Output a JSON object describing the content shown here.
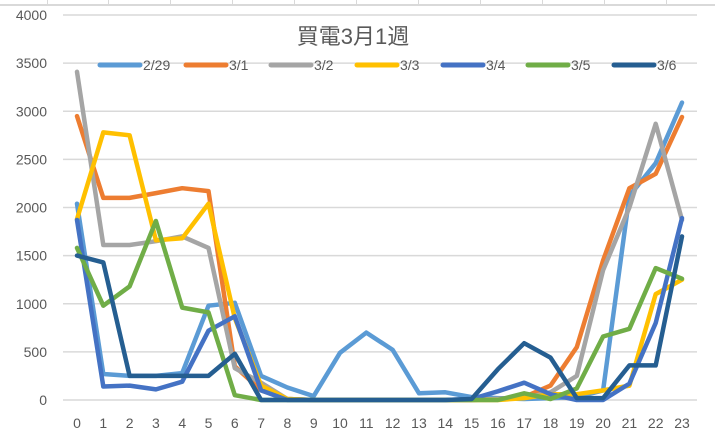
{
  "chart_data": {
    "type": "line",
    "title": "買電3月1週",
    "xlabel": "",
    "ylabel": "",
    "ylim": [
      0,
      4000
    ],
    "yticks": [
      0,
      500,
      1000,
      1500,
      2000,
      2500,
      3000,
      3500,
      4000
    ],
    "grid": true,
    "legend_position": "top",
    "x": [
      0,
      1,
      2,
      3,
      4,
      5,
      6,
      7,
      8,
      9,
      10,
      11,
      12,
      13,
      14,
      15,
      16,
      17,
      18,
      19,
      20,
      21,
      22,
      23
    ],
    "series": [
      {
        "name": "2/29",
        "color": "#5B9BD5",
        "values": [
          2040,
          270,
          250,
          250,
          280,
          980,
          1010,
          250,
          130,
          40,
          490,
          700,
          520,
          70,
          80,
          30,
          20,
          10,
          20,
          30,
          100,
          2120,
          2460,
          3090
        ]
      },
      {
        "name": "3/1",
        "color": "#ED7D31",
        "values": [
          2950,
          2100,
          2100,
          2150,
          2200,
          2170,
          350,
          100,
          10,
          0,
          0,
          0,
          0,
          0,
          0,
          0,
          10,
          30,
          150,
          550,
          1450,
          2200,
          2350,
          2940
        ]
      },
      {
        "name": "3/2",
        "color": "#A5A5A5",
        "values": [
          3410,
          1610,
          1610,
          1650,
          1700,
          1580,
          330,
          180,
          10,
          0,
          0,
          0,
          0,
          0,
          0,
          0,
          10,
          20,
          80,
          250,
          1350,
          2000,
          2870,
          1870
        ]
      },
      {
        "name": "3/3",
        "color": "#FFC000",
        "values": [
          1880,
          2780,
          2750,
          1660,
          1680,
          2040,
          850,
          150,
          10,
          0,
          0,
          0,
          0,
          0,
          0,
          0,
          0,
          20,
          60,
          60,
          100,
          150,
          1100,
          1250
        ]
      },
      {
        "name": "3/4",
        "color": "#4472C4",
        "values": [
          1870,
          140,
          150,
          110,
          190,
          720,
          870,
          100,
          0,
          0,
          0,
          0,
          0,
          0,
          0,
          10,
          90,
          180,
          60,
          0,
          0,
          170,
          800,
          1890
        ]
      },
      {
        "name": "3/5",
        "color": "#70AD47",
        "values": [
          1580,
          980,
          1180,
          1860,
          960,
          910,
          50,
          0,
          0,
          0,
          0,
          0,
          0,
          0,
          0,
          0,
          0,
          70,
          10,
          120,
          660,
          740,
          1370,
          1260
        ]
      },
      {
        "name": "3/6",
        "color": "#255E91",
        "values": [
          1500,
          1430,
          250,
          250,
          250,
          250,
          480,
          0,
          0,
          0,
          0,
          0,
          0,
          0,
          0,
          10,
          320,
          590,
          440,
          20,
          20,
          360,
          360,
          1700
        ]
      }
    ]
  }
}
